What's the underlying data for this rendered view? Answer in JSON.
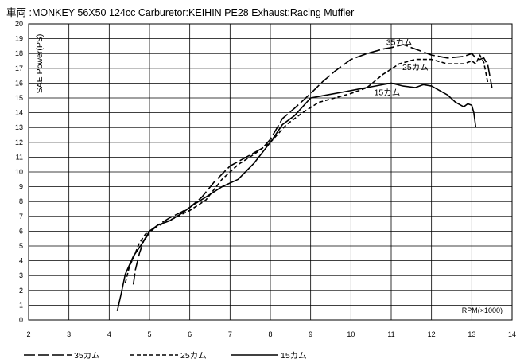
{
  "chart_data": {
    "type": "line",
    "title": "車両 :MONKEY  56X50 124cc Carburetor:KEIHIN PE28  Exhaust:Racing Muffler",
    "ylabel": "SAE Power(PS)",
    "xlabel": "RPM(×1000)",
    "xlim": [
      2,
      14
    ],
    "ylim": [
      0,
      20
    ],
    "xticks": [
      2,
      3,
      4,
      5,
      6,
      7,
      8,
      9,
      10,
      11,
      12,
      13,
      14
    ],
    "yticks": [
      0,
      1,
      2,
      3,
      4,
      5,
      6,
      7,
      8,
      9,
      10,
      11,
      12,
      13,
      14,
      15,
      16,
      17,
      18,
      19,
      20
    ],
    "grid": true,
    "legend_position": "bottom",
    "series": [
      {
        "name": "35カム",
        "dash": "long-dash",
        "label_at": [
          11.2,
          18.8
        ],
        "x": [
          4.6,
          4.65,
          4.75,
          4.85,
          5.0,
          5.2,
          5.5,
          5.8,
          6.0,
          6.3,
          6.6,
          7.0,
          7.4,
          7.8,
          8.0,
          8.3,
          8.6,
          9.0,
          9.3,
          9.6,
          10.0,
          10.4,
          10.8,
          11.0,
          11.3,
          11.6,
          12.0,
          12.4,
          12.8,
          13.0,
          13.1,
          13.2,
          13.3,
          13.4,
          13.5
        ],
        "y": [
          2.4,
          3.4,
          4.5,
          5.3,
          5.9,
          6.4,
          6.9,
          7.3,
          7.6,
          8.3,
          9.3,
          10.4,
          11.0,
          11.6,
          12.2,
          13.6,
          14.3,
          15.3,
          16.1,
          16.8,
          17.6,
          18.0,
          18.3,
          18.4,
          18.6,
          18.3,
          17.9,
          17.7,
          17.8,
          18.0,
          17.7,
          17.6,
          17.7,
          17.2,
          15.7
        ]
      },
      {
        "name": "25カム",
        "dash": "short-dash",
        "label_at": [
          11.6,
          17.1
        ],
        "x": [
          4.4,
          4.5,
          4.6,
          4.75,
          4.9,
          5.1,
          5.4,
          5.7,
          6.0,
          6.4,
          6.8,
          7.2,
          7.6,
          8.0,
          8.4,
          8.8,
          9.2,
          9.6,
          10.0,
          10.4,
          10.8,
          11.2,
          11.6,
          12.0,
          12.4,
          12.8,
          13.0,
          13.1,
          13.2,
          13.3,
          13.4
        ],
        "y": [
          2.5,
          3.6,
          4.2,
          5.2,
          5.8,
          6.2,
          6.6,
          7.0,
          7.4,
          8.1,
          9.5,
          10.5,
          11.2,
          12.0,
          13.2,
          14.0,
          14.7,
          15.0,
          15.3,
          15.7,
          16.6,
          17.3,
          17.6,
          17.6,
          17.3,
          17.3,
          17.5,
          17.3,
          17.9,
          17.4,
          16.0
        ]
      },
      {
        "name": "15カム",
        "dash": "solid",
        "label_at": [
          10.9,
          15.4
        ],
        "x": [
          4.2,
          4.3,
          4.4,
          4.6,
          4.8,
          5.0,
          5.2,
          5.5,
          5.8,
          6.1,
          6.4,
          6.8,
          7.2,
          7.6,
          8.0,
          8.3,
          8.6,
          9.0,
          9.4,
          9.8,
          10.2,
          10.6,
          11.0,
          11.3,
          11.6,
          11.8,
          12.0,
          12.2,
          12.4,
          12.6,
          12.8,
          12.9,
          13.0,
          13.05,
          13.1
        ],
        "y": [
          0.6,
          1.8,
          3.1,
          4.3,
          5.1,
          6.0,
          6.4,
          6.7,
          7.2,
          7.8,
          8.3,
          9.0,
          9.5,
          10.6,
          12.0,
          13.2,
          13.8,
          15.0,
          15.2,
          15.4,
          15.6,
          15.8,
          16.0,
          15.8,
          15.7,
          15.9,
          15.8,
          15.5,
          15.2,
          14.7,
          14.4,
          14.6,
          14.5,
          14.0,
          13.0
        ]
      }
    ]
  }
}
